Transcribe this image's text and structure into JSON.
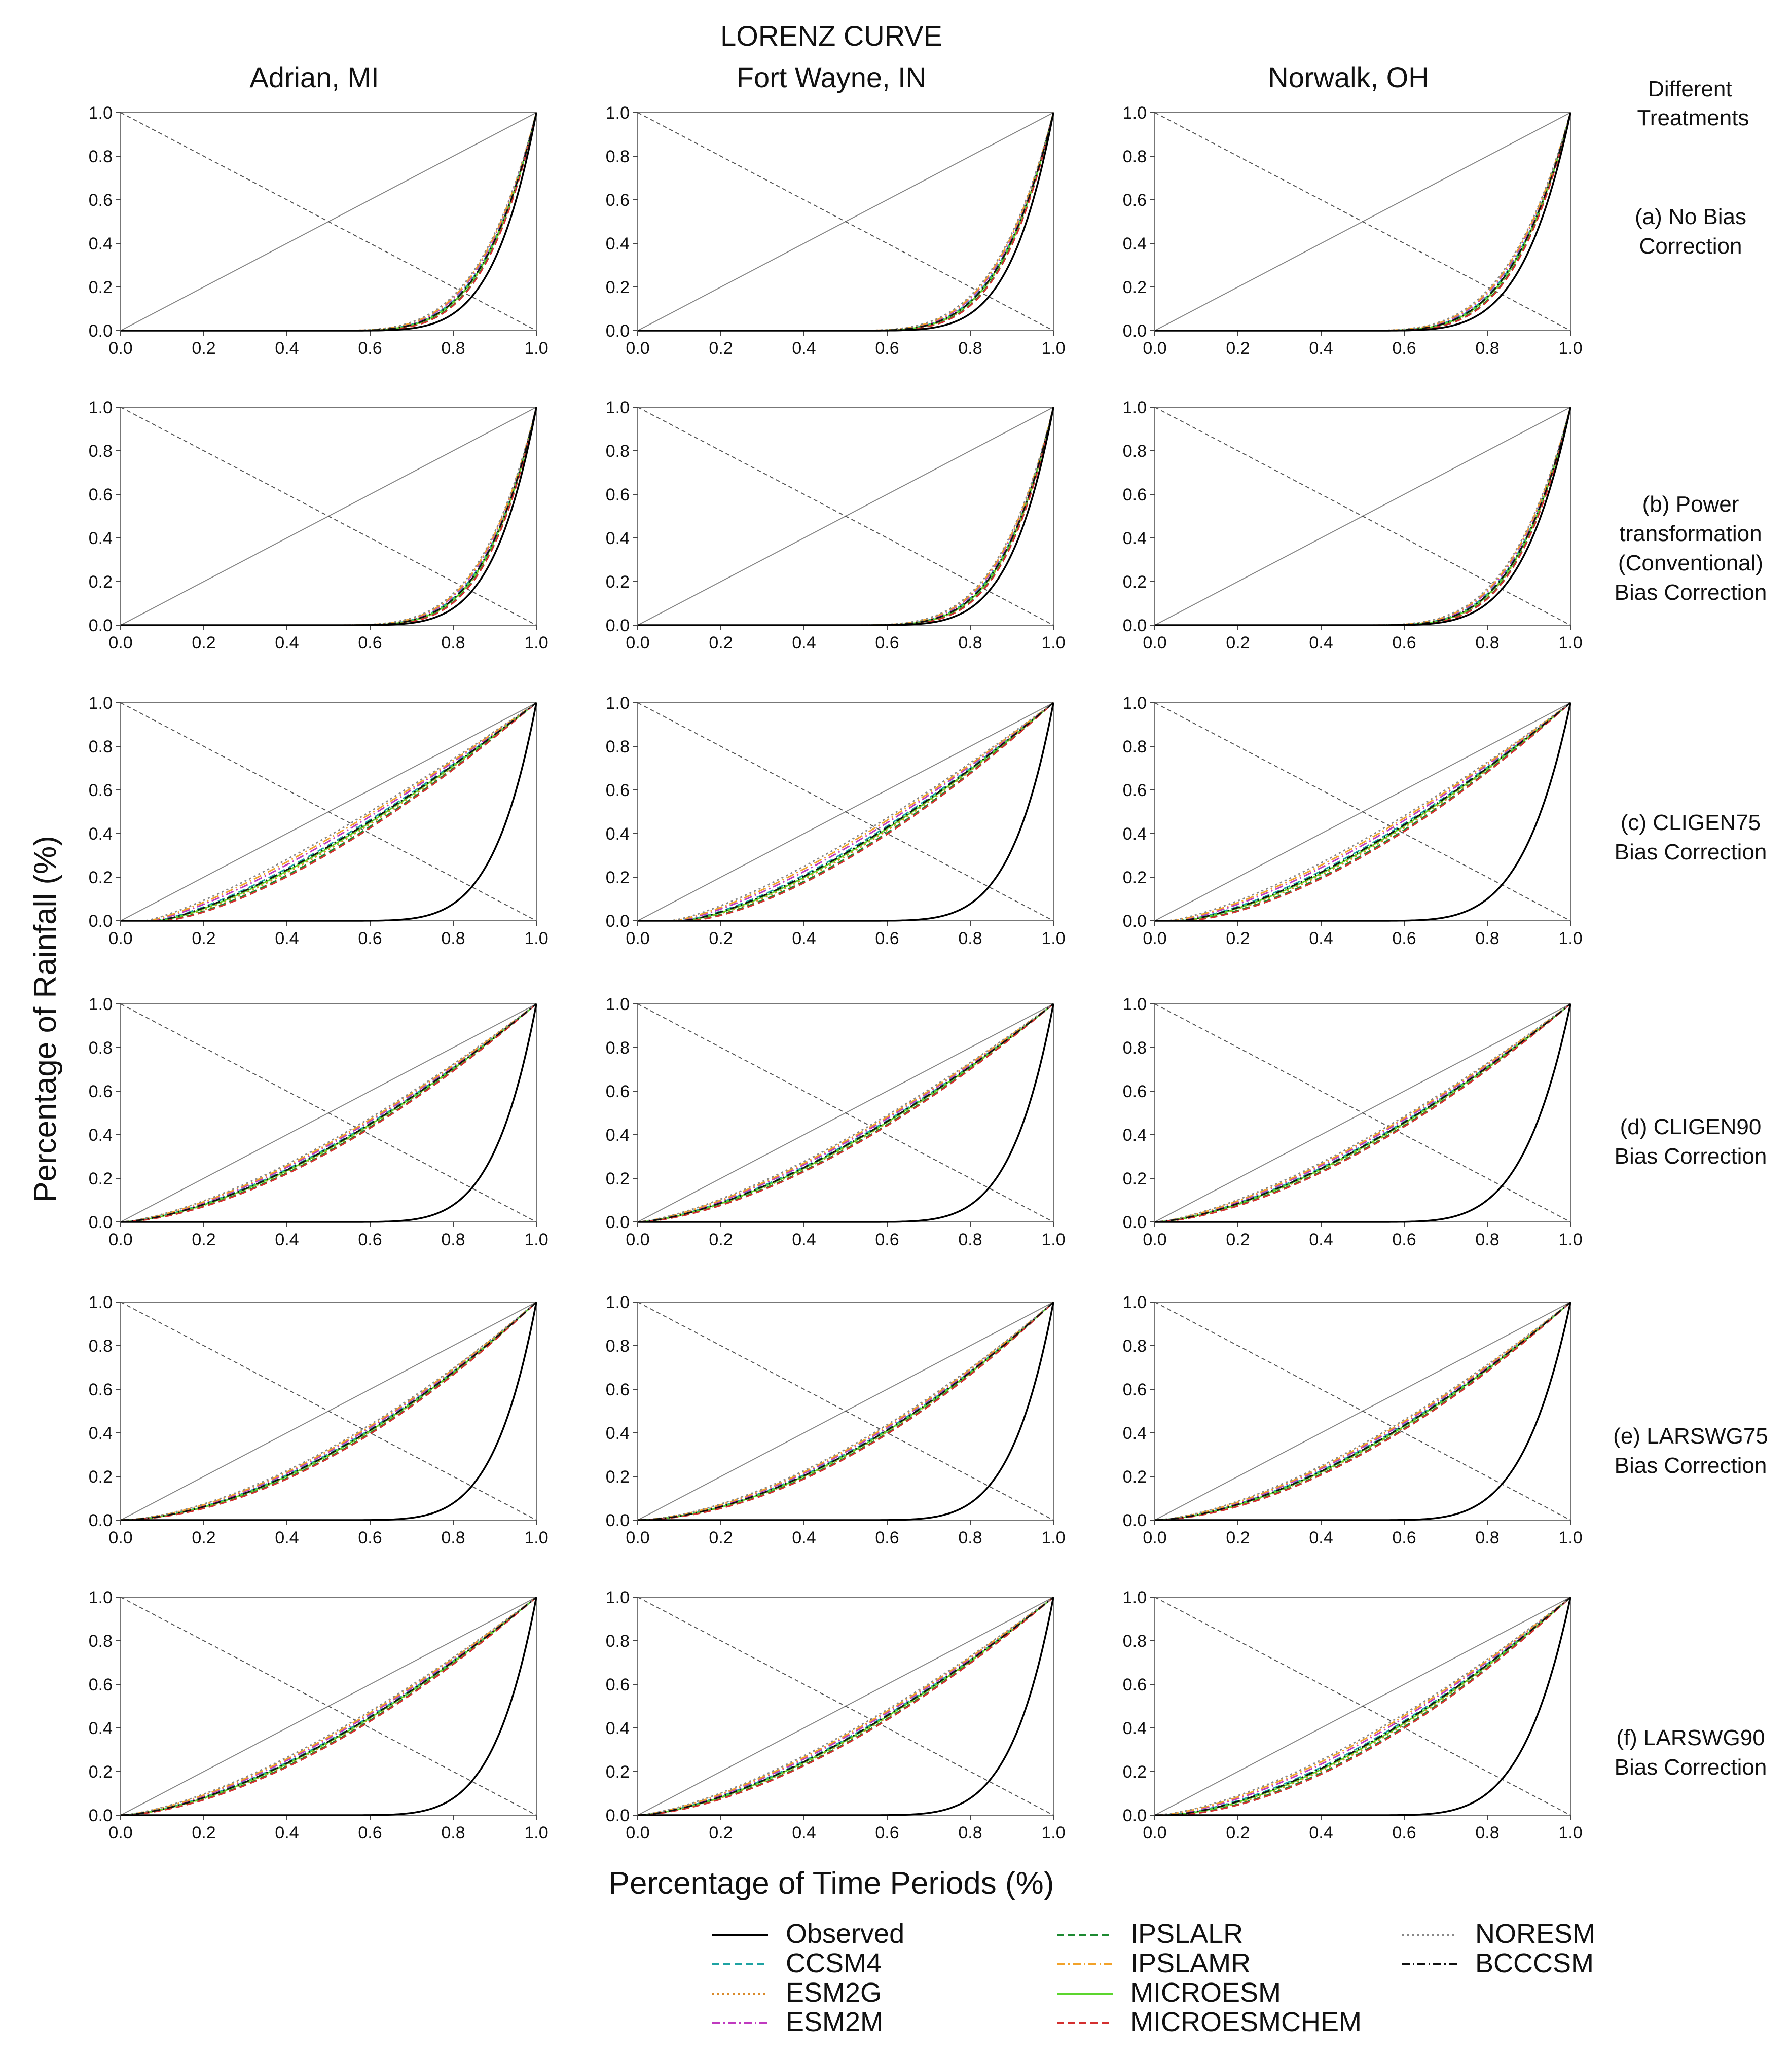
{
  "figure": {
    "title": "LORENZ CURVE",
    "y_label": "Percentage  of Rainfall (%)",
    "x_label": "Percentage of Time Periods (%)",
    "row_header": [
      "Different",
      "Treatments"
    ]
  },
  "columns": [
    "Adrian, MI",
    "Fort Wayne, IN",
    "Norwalk, OH"
  ],
  "rows": [
    {
      "id": "a",
      "label": [
        "(a) No Bias",
        "Correction"
      ]
    },
    {
      "id": "b",
      "label": [
        "(b) Power",
        "transformation",
        "(Conventional)",
        "Bias Correction"
      ]
    },
    {
      "id": "c",
      "label": [
        "(c) CLIGEN75",
        "Bias Correction"
      ]
    },
    {
      "id": "d",
      "label": [
        "(d) CLIGEN90",
        "Bias Correction"
      ]
    },
    {
      "id": "e",
      "label": [
        "(e) LARSWG75",
        "Bias Correction"
      ]
    },
    {
      "id": "f",
      "label": [
        "(f) LARSWG90",
        "Bias Correction"
      ]
    }
  ],
  "legend": [
    {
      "name": "Observed",
      "color": "#000000",
      "dash": "solid"
    },
    {
      "name": "CCSM4",
      "color": "#1fa3a3",
      "dash": "dash"
    },
    {
      "name": "ESM2G",
      "color": "#d98a2b",
      "dash": "dot"
    },
    {
      "name": "ESM2M",
      "color": "#c03ac0",
      "dash": "dashdot"
    },
    {
      "name": "IPSLALR",
      "color": "#1e8a32",
      "dash": "dash"
    },
    {
      "name": "IPSLAMR",
      "color": "#f2a22a",
      "dash": "dashdot"
    },
    {
      "name": "MICROESM",
      "color": "#5cd62e",
      "dash": "solid"
    },
    {
      "name": "MICROESMCHEM",
      "color": "#d43030",
      "dash": "dash"
    },
    {
      "name": "NORESM",
      "color": "#888888",
      "dash": "dot"
    },
    {
      "name": "BCCCSM",
      "color": "#111111",
      "dash": "dashdot"
    }
  ],
  "chart_data": {
    "type": "line",
    "layout": "6 rows x 3 columns small multiples",
    "title": "LORENZ CURVE",
    "xlabel": "Percentage of Time Periods (%)",
    "ylabel": "Percentage  of Rainfall (%)",
    "xlim": [
      0,
      1
    ],
    "ylim": [
      0,
      1
    ],
    "ticks": [
      "0.0",
      "0.2",
      "0.4",
      "0.6",
      "0.8",
      "1.0"
    ],
    "reference_lines": [
      {
        "name": "line of equality",
        "style": "solid",
        "points": [
          [
            0,
            0
          ],
          [
            1,
            1
          ]
        ]
      },
      {
        "name": "anti-diagonal",
        "style": "dashed",
        "points": [
          [
            0,
            1
          ],
          [
            1,
            0
          ]
        ]
      }
    ],
    "curve_model": "y = ((x - x0) / (1 - x0)) ^ p for x >= x0, else 0",
    "observed": [
      {
        "x0": 0.5,
        "p": 5.0
      },
      {
        "x0": 0.5,
        "p": 5.0
      },
      {
        "x0": 0.5,
        "p": 4.5
      }
    ],
    "models": [
      [
        {
          "x0": 0.5,
          "p": 3.9
        },
        {
          "x0": 0.5,
          "p": 3.9
        },
        {
          "x0": 0.5,
          "p": 3.6
        }
      ],
      [
        {
          "x0": 0.5,
          "p": 4.1
        },
        {
          "x0": 0.5,
          "p": 4.1
        },
        {
          "x0": 0.5,
          "p": 3.8
        }
      ],
      [
        {
          "x0": 0.08,
          "p": 1.35
        },
        {
          "x0": 0.1,
          "p": 1.42
        },
        {
          "x0": 0.05,
          "p": 1.48
        }
      ],
      [
        {
          "x0": 0.0,
          "p": 1.55
        },
        {
          "x0": 0.0,
          "p": 1.5
        },
        {
          "x0": 0.0,
          "p": 1.52
        }
      ],
      [
        {
          "x0": 0.0,
          "p": 1.72
        },
        {
          "x0": 0.0,
          "p": 1.72
        },
        {
          "x0": 0.0,
          "p": 1.62
        }
      ],
      [
        {
          "x0": 0.0,
          "p": 1.55
        },
        {
          "x0": 0.0,
          "p": 1.52
        },
        {
          "x0": 0.02,
          "p": 1.6
        }
      ]
    ]
  }
}
